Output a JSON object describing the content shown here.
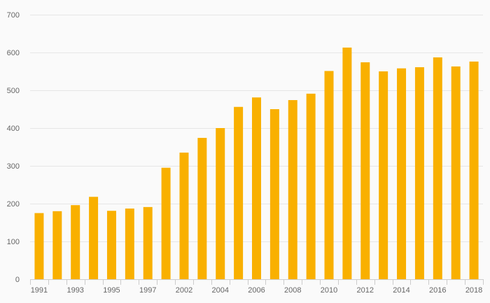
{
  "chart_data": {
    "type": "bar",
    "title": "",
    "xlabel": "",
    "ylabel": "",
    "categories": [
      "1991",
      "1992",
      "1993",
      "1994",
      "1995",
      "1996",
      "1997",
      "2001",
      "2002",
      "2003",
      "2004",
      "2005",
      "2006",
      "2007",
      "2008",
      "2009",
      "2010",
      "2011",
      "2012",
      "2013",
      "2014",
      "2015",
      "2016",
      "2017",
      "2018"
    ],
    "x_tick_labels_shown": [
      "1991",
      "1993",
      "1995",
      "1997",
      "2002",
      "2004",
      "2006",
      "2008",
      "2010",
      "2012",
      "2014",
      "2016",
      "2018"
    ],
    "values": [
      175,
      180,
      196,
      218,
      181,
      187,
      191,
      295,
      335,
      374,
      400,
      456,
      481,
      450,
      474,
      491,
      551,
      613,
      574,
      550,
      558,
      561,
      587,
      563,
      576
    ],
    "ylim": [
      0,
      700
    ],
    "y_ticks": [
      0,
      100,
      200,
      300,
      400,
      500,
      600,
      700
    ],
    "grid": true,
    "legend": "none",
    "colors": {
      "bar": "#f9b000",
      "background": "#fafafa",
      "grid": "#e6e6e6",
      "axis": "#cccccc",
      "text": "#666666"
    }
  }
}
